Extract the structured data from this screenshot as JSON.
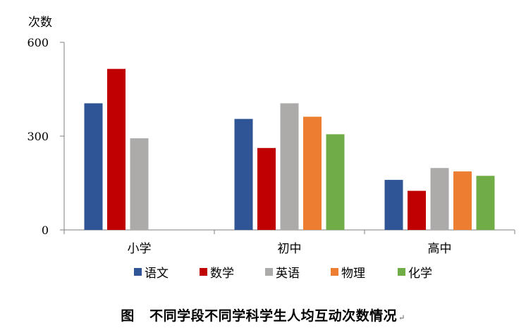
{
  "chart_data": {
    "type": "bar",
    "ylabel": "次数",
    "ylim": [
      0,
      600
    ],
    "yticks": [
      0,
      300,
      600
    ],
    "categories": [
      "小学",
      "初中",
      "高中"
    ],
    "series": [
      {
        "name": "语文",
        "color": "#2F5597",
        "values": [
          405,
          355,
          160
        ]
      },
      {
        "name": "数学",
        "color": "#C00000",
        "values": [
          515,
          262,
          125
        ]
      },
      {
        "name": "英语",
        "color": "#ADAAAA",
        "values": [
          293,
          405,
          198
        ]
      },
      {
        "name": "物理",
        "color": "#ED7D31",
        "values": [
          null,
          362,
          187
        ]
      },
      {
        "name": "化学",
        "color": "#70AD47",
        "values": [
          null,
          306,
          173
        ]
      }
    ],
    "legend_position": "bottom",
    "grid": false
  },
  "caption": {
    "prefix": "图",
    "title": "不同学段不同学科学生人均互动次数情况",
    "return_mark": "↵"
  }
}
